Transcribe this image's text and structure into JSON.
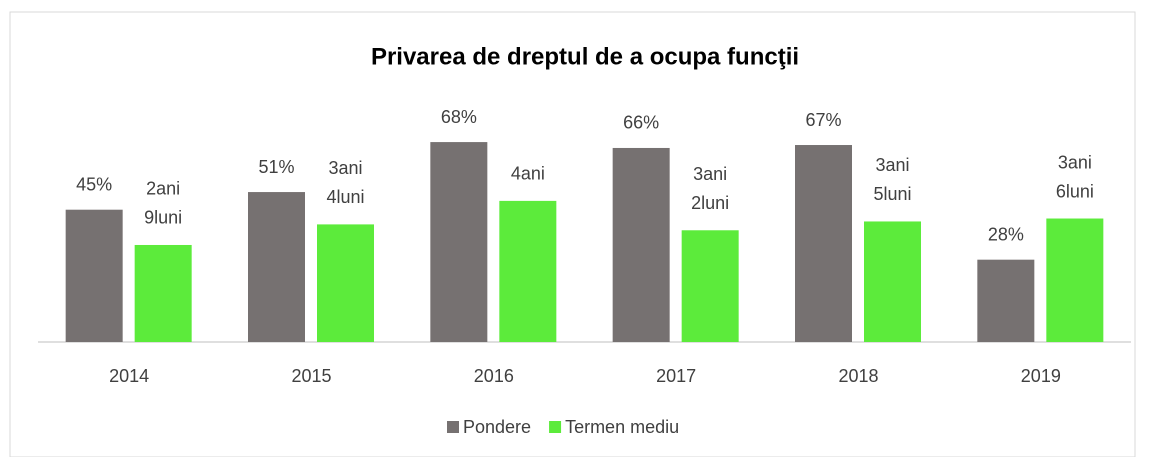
{
  "chart_data": {
    "type": "bar",
    "title": "Privarea de dreptul de a ocupa funcţii",
    "categories": [
      "2014",
      "2015",
      "2016",
      "2017",
      "2018",
      "2019"
    ],
    "series": [
      {
        "name": "Pondere",
        "color": "#767171",
        "values": [
          45,
          51,
          68,
          66,
          67,
          28
        ],
        "value_labels": [
          "45%",
          "51%",
          "68%",
          "66%",
          "67%",
          "28%"
        ]
      },
      {
        "name": "Termen mediu",
        "color": "#5ceb3b",
        "values": [
          33,
          40,
          48,
          38,
          41,
          42
        ],
        "value_labels": [
          [
            "2ani",
            "9luni"
          ],
          [
            "3ani",
            "4luni"
          ],
          [
            "4ani"
          ],
          [
            "3ani",
            "2luni"
          ],
          [
            "3ani",
            "5luni"
          ],
          [
            "3ani",
            "6luni"
          ]
        ]
      }
    ],
    "ylim": [
      0,
      100
    ],
    "legend": "bottom"
  }
}
